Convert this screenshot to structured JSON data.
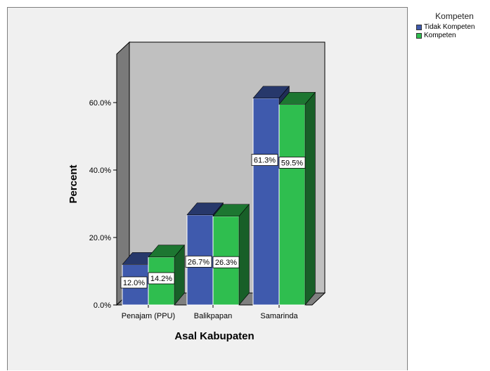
{
  "chart_data": {
    "type": "bar",
    "three_d": true,
    "categories": [
      "Penajam (PPU)",
      "Balikpapan",
      "Samarinda"
    ],
    "series": [
      {
        "name": "Tidak Kompeten",
        "values": [
          12.0,
          26.7,
          61.3
        ],
        "color": "#3f5aad"
      },
      {
        "name": "Kompeten",
        "values": [
          14.2,
          26.3,
          59.5
        ],
        "color": "#2fbe4f"
      }
    ],
    "data_labels": [
      [
        "12.0%",
        "14.2%"
      ],
      [
        "26.7%",
        "26.3%"
      ],
      [
        "61.3%",
        "59.5%"
      ]
    ],
    "xlabel": "Asal Kabupaten",
    "ylabel": "Percent",
    "ylim": [
      0,
      60
    ],
    "yticks": [
      "0.0%",
      "20.0%",
      "40.0%",
      "60.0%"
    ],
    "legend_title": "Kompeten",
    "legend_position": "top-right",
    "grid": false
  }
}
